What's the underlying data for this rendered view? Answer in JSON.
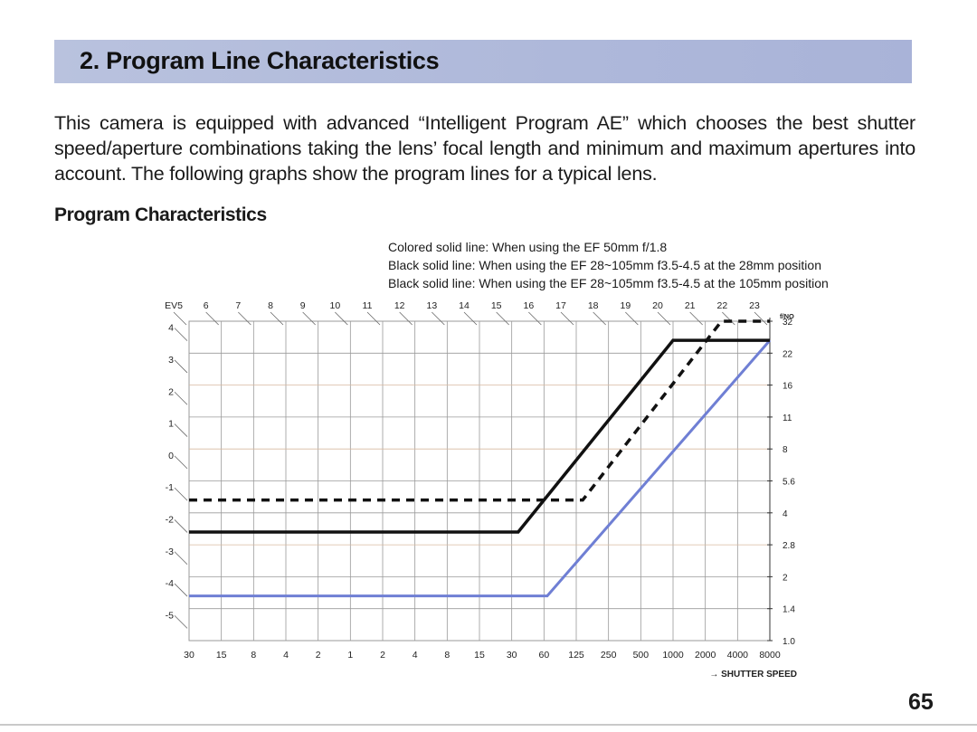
{
  "header": {
    "title": "2. Program Line Characteristics"
  },
  "intro_text": "This camera is equipped with advanced “Intelligent Program AE” which chooses the best shutter speed/aperture combinations taking the lens’ focal length and minimum and maximum apertures into account. The following graphs show the program lines for a typical lens.",
  "section_title": "Program Characteristics",
  "legend_notes": [
    "Colored solid line: When using the EF 50mm f/1.8",
    "Black solid line: When using the EF 28~105mm f3.5-4.5 at the 28mm position",
    "Black solid line: When using the EF 28~105mm f3.5-4.5 at the 105mm position"
  ],
  "page_number": "65",
  "colors": {
    "banner": "#aeb8da",
    "colored_line": "#6f7fd4",
    "black_line": "#111111",
    "grid": "#9a9a9a",
    "grid_accent": "#d8b9a0"
  },
  "chart_data": {
    "type": "line",
    "title": "",
    "ev_labels": [
      "EV5",
      "6",
      "7",
      "8",
      "9",
      "10",
      "11",
      "12",
      "13",
      "14",
      "15",
      "16",
      "17",
      "18",
      "19",
      "20",
      "21",
      "22",
      "23"
    ],
    "x_labels": [
      "30",
      "15",
      "8",
      "4",
      "2",
      "1",
      "2",
      "4",
      "8",
      "15",
      "30",
      "60",
      "125",
      "250",
      "500",
      "1000",
      "2000",
      "4000",
      "8000"
    ],
    "x_axis_title": "→ SHUTTER SPEED",
    "y_left_labels": [
      "4",
      "3",
      "2",
      "1",
      "0",
      "-1",
      "-2",
      "-3",
      "-4",
      "-5"
    ],
    "y_right_title": "f/NO",
    "y_right_labels": [
      "32",
      "22",
      "16",
      "11",
      "8",
      "5.6",
      "4",
      "2.8",
      "2",
      "1.4",
      "1.0"
    ],
    "xlim": [
      0,
      18
    ],
    "ylim": [
      0,
      10
    ],
    "grid": true,
    "series": [
      {
        "style": "colored-solid",
        "x": [
          0,
          11.1,
          18
        ],
        "y": [
          1.4,
          1.4,
          9.4
        ]
      },
      {
        "style": "black-solid",
        "x": [
          0,
          10.2,
          15.0,
          18
        ],
        "y": [
          3.4,
          3.4,
          9.4,
          9.4
        ]
      },
      {
        "style": "black-dashed",
        "x": [
          0,
          12.2,
          16.5,
          18
        ],
        "y": [
          4.4,
          4.4,
          10.0,
          10.0
        ]
      }
    ]
  }
}
